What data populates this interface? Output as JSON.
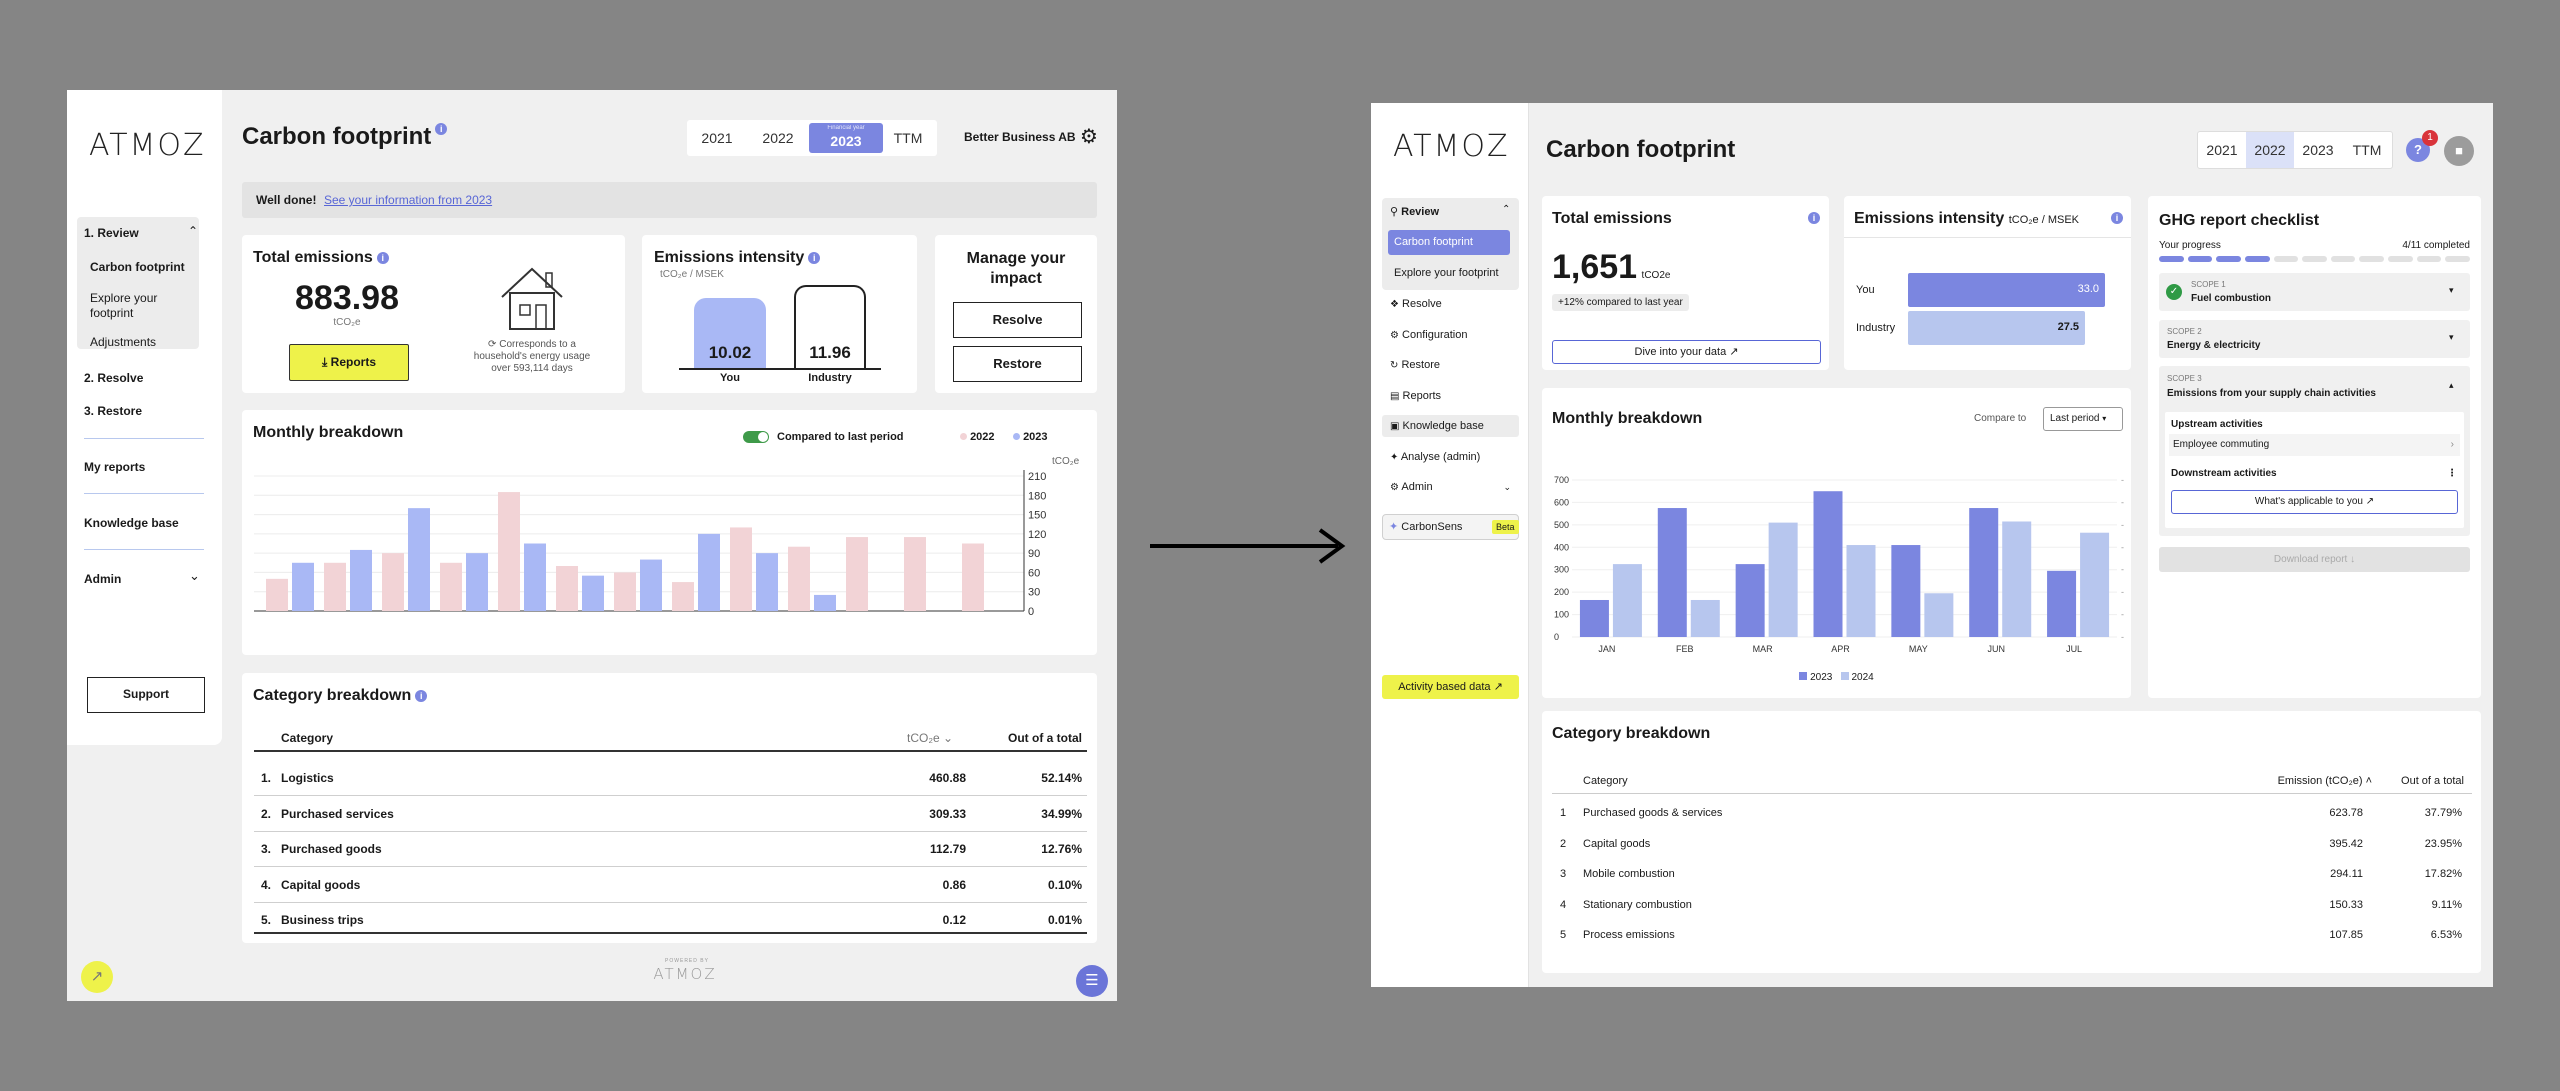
{
  "left": {
    "logo": "ATMOZ",
    "page_title": "Carbon footprint",
    "years": [
      "2021",
      "2022",
      "2023",
      "TTM"
    ],
    "active_year_caption": "Financial year",
    "company": "Better Business AB",
    "banner": {
      "bold": "Well done!",
      "link": "See your information from 2023"
    },
    "nav": {
      "review": "1. Review",
      "sub": [
        "Carbon footprint",
        "Explore your footprint",
        "Adjustments"
      ],
      "resolve": "2. Resolve",
      "restore": "3. Restore",
      "my_reports": "My reports",
      "knowledge": "Knowledge base",
      "admin": "Admin",
      "support": "Support"
    },
    "total": {
      "title": "Total emissions",
      "value": "883.98",
      "unit": "tCO₂e",
      "reports_btn": "Reports",
      "house_line1": "Corresponds to a",
      "house_line2": "household's energy usage",
      "house_line3": "over 593,114 days"
    },
    "intensity": {
      "title": "Emissions intensity",
      "unit": "tCO₂e / MSEK",
      "you_value": "10.02",
      "industry_value": "11.96",
      "you_label": "You",
      "industry_label": "Industry"
    },
    "impact": {
      "title": "Manage your impact",
      "resolve": "Resolve",
      "restore": "Restore"
    },
    "monthly": {
      "title": "Monthly breakdown",
      "toggle_label": "Compared to last period",
      "legend_2022": "2022",
      "legend_2023": "2023",
      "unit": "tCO₂e",
      "ticks": [
        "210",
        "180",
        "150",
        "120",
        "90",
        "60",
        "30",
        "0"
      ]
    },
    "category": {
      "title": "Category breakdown",
      "headers": {
        "category": "Category",
        "unit": "tCO₂e",
        "share": "Out of a total"
      },
      "rows": [
        {
          "n": "1.",
          "name": "Logistics",
          "value": "460.88",
          "share": "52.14%"
        },
        {
          "n": "2.",
          "name": "Purchased services",
          "value": "309.33",
          "share": "34.99%"
        },
        {
          "n": "3.",
          "name": "Purchased goods",
          "value": "112.79",
          "share": "12.76%"
        },
        {
          "n": "4.",
          "name": "Capital goods",
          "value": "0.86",
          "share": "0.10%"
        },
        {
          "n": "5.",
          "name": "Business trips",
          "value": "0.12",
          "share": "0.01%"
        }
      ]
    },
    "footer_logo": "ATMOZ",
    "footer_caption": "POWERED BY"
  },
  "right": {
    "logo": "ATMOZ",
    "page_title": "Carbon footprint",
    "years": [
      "2021",
      "2022",
      "2023",
      "TTM"
    ],
    "help_badge": "1",
    "nav": {
      "review": "Review",
      "carbon_footprint": "Carbon footprint",
      "explore": "Explore your footprint",
      "items": [
        "Resolve",
        "Configuration",
        "Restore",
        "Reports",
        "Knowledge base",
        "Analyse (admin)",
        "Admin"
      ],
      "carbonsens": "CarbonSens",
      "beta": "Beta",
      "activity": "Activity based data ↗"
    },
    "total": {
      "title": "Total emissions",
      "value": "1,651",
      "unit": "tCO2e",
      "change": "+12% compared to last year",
      "dive": "Dive into your data ↗"
    },
    "intensity": {
      "title": "Emissions intensity",
      "unit": "tCO₂e / MSEK",
      "you_label": "You",
      "industry_label": "Industry",
      "you_value": "33.0",
      "industry_value": "27.5"
    },
    "monthly": {
      "title": "Monthly breakdown",
      "compare_label": "Compare to",
      "compare_value": "Last period",
      "legend_2023": "2023",
      "legend_2024": "2024"
    },
    "ghg": {
      "title": "GHG report checklist",
      "progress_label": "Your progress",
      "progress_count": "4/11 completed",
      "scope1_caption": "SCOPE 1",
      "scope1_title": "Fuel combustion",
      "scope2_caption": "SCOPE 2",
      "scope2_title": "Energy & electricity",
      "scope3_caption": "SCOPE 3",
      "scope3_title": "Emissions from your supply chain activities",
      "upstream": "Upstream activities",
      "employee": "Employee commuting",
      "downstream": "Downstream activities",
      "applicable": "What's applicable to you ↗",
      "download": "Download report ↓"
    },
    "category": {
      "title": "Category breakdown",
      "headers": {
        "category": "Category",
        "emission": "Emission (tCO₂e) ˄",
        "share": "Out of a total"
      },
      "rows": [
        {
          "n": "1",
          "name": "Purchased goods & services",
          "value": "623.78",
          "share": "37.79%"
        },
        {
          "n": "2",
          "name": "Capital goods",
          "value": "395.42",
          "share": "23.95%"
        },
        {
          "n": "3",
          "name": "Mobile combustion",
          "value": "294.11",
          "share": "17.82%"
        },
        {
          "n": "4",
          "name": "Stationary combustion",
          "value": "150.33",
          "share": "9.11%"
        },
        {
          "n": "5",
          "name": "Process emissions",
          "value": "107.85",
          "share": "6.53%"
        }
      ]
    }
  },
  "chart_data": [
    {
      "type": "bar",
      "ylabel": "tCO₂e",
      "ylim": [
        0,
        210
      ],
      "yticks": [
        0,
        30,
        60,
        90,
        120,
        150,
        180,
        210
      ],
      "series": [
        {
          "name": "2022",
          "values": [
            50,
            75,
            90,
            75,
            185,
            70,
            60,
            45,
            130,
            100,
            115,
            115,
            105
          ]
        },
        {
          "name": "2023",
          "values": [
            75,
            95,
            160,
            90,
            105,
            55,
            80,
            120,
            90,
            25
          ]
        }
      ],
      "colors": {
        "2022": "#f2d3d6",
        "2023": "#a9b8f5"
      }
    },
    {
      "type": "bar",
      "categories": [
        "JAN",
        "FEB",
        "MAR",
        "APR",
        "MAY",
        "JUN",
        "JUL"
      ],
      "ylim": [
        0,
        700
      ],
      "yticks": [
        0,
        100,
        200,
        300,
        400,
        500,
        600,
        700
      ],
      "series": [
        {
          "name": "2023",
          "values": [
            165,
            575,
            325,
            650,
            410,
            575,
            295
          ]
        },
        {
          "name": "2024",
          "values": [
            325,
            165,
            510,
            410,
            195,
            515,
            465
          ]
        }
      ],
      "colors": {
        "2023": "#7b86e0",
        "2024": "#b7c6ee"
      }
    }
  ]
}
